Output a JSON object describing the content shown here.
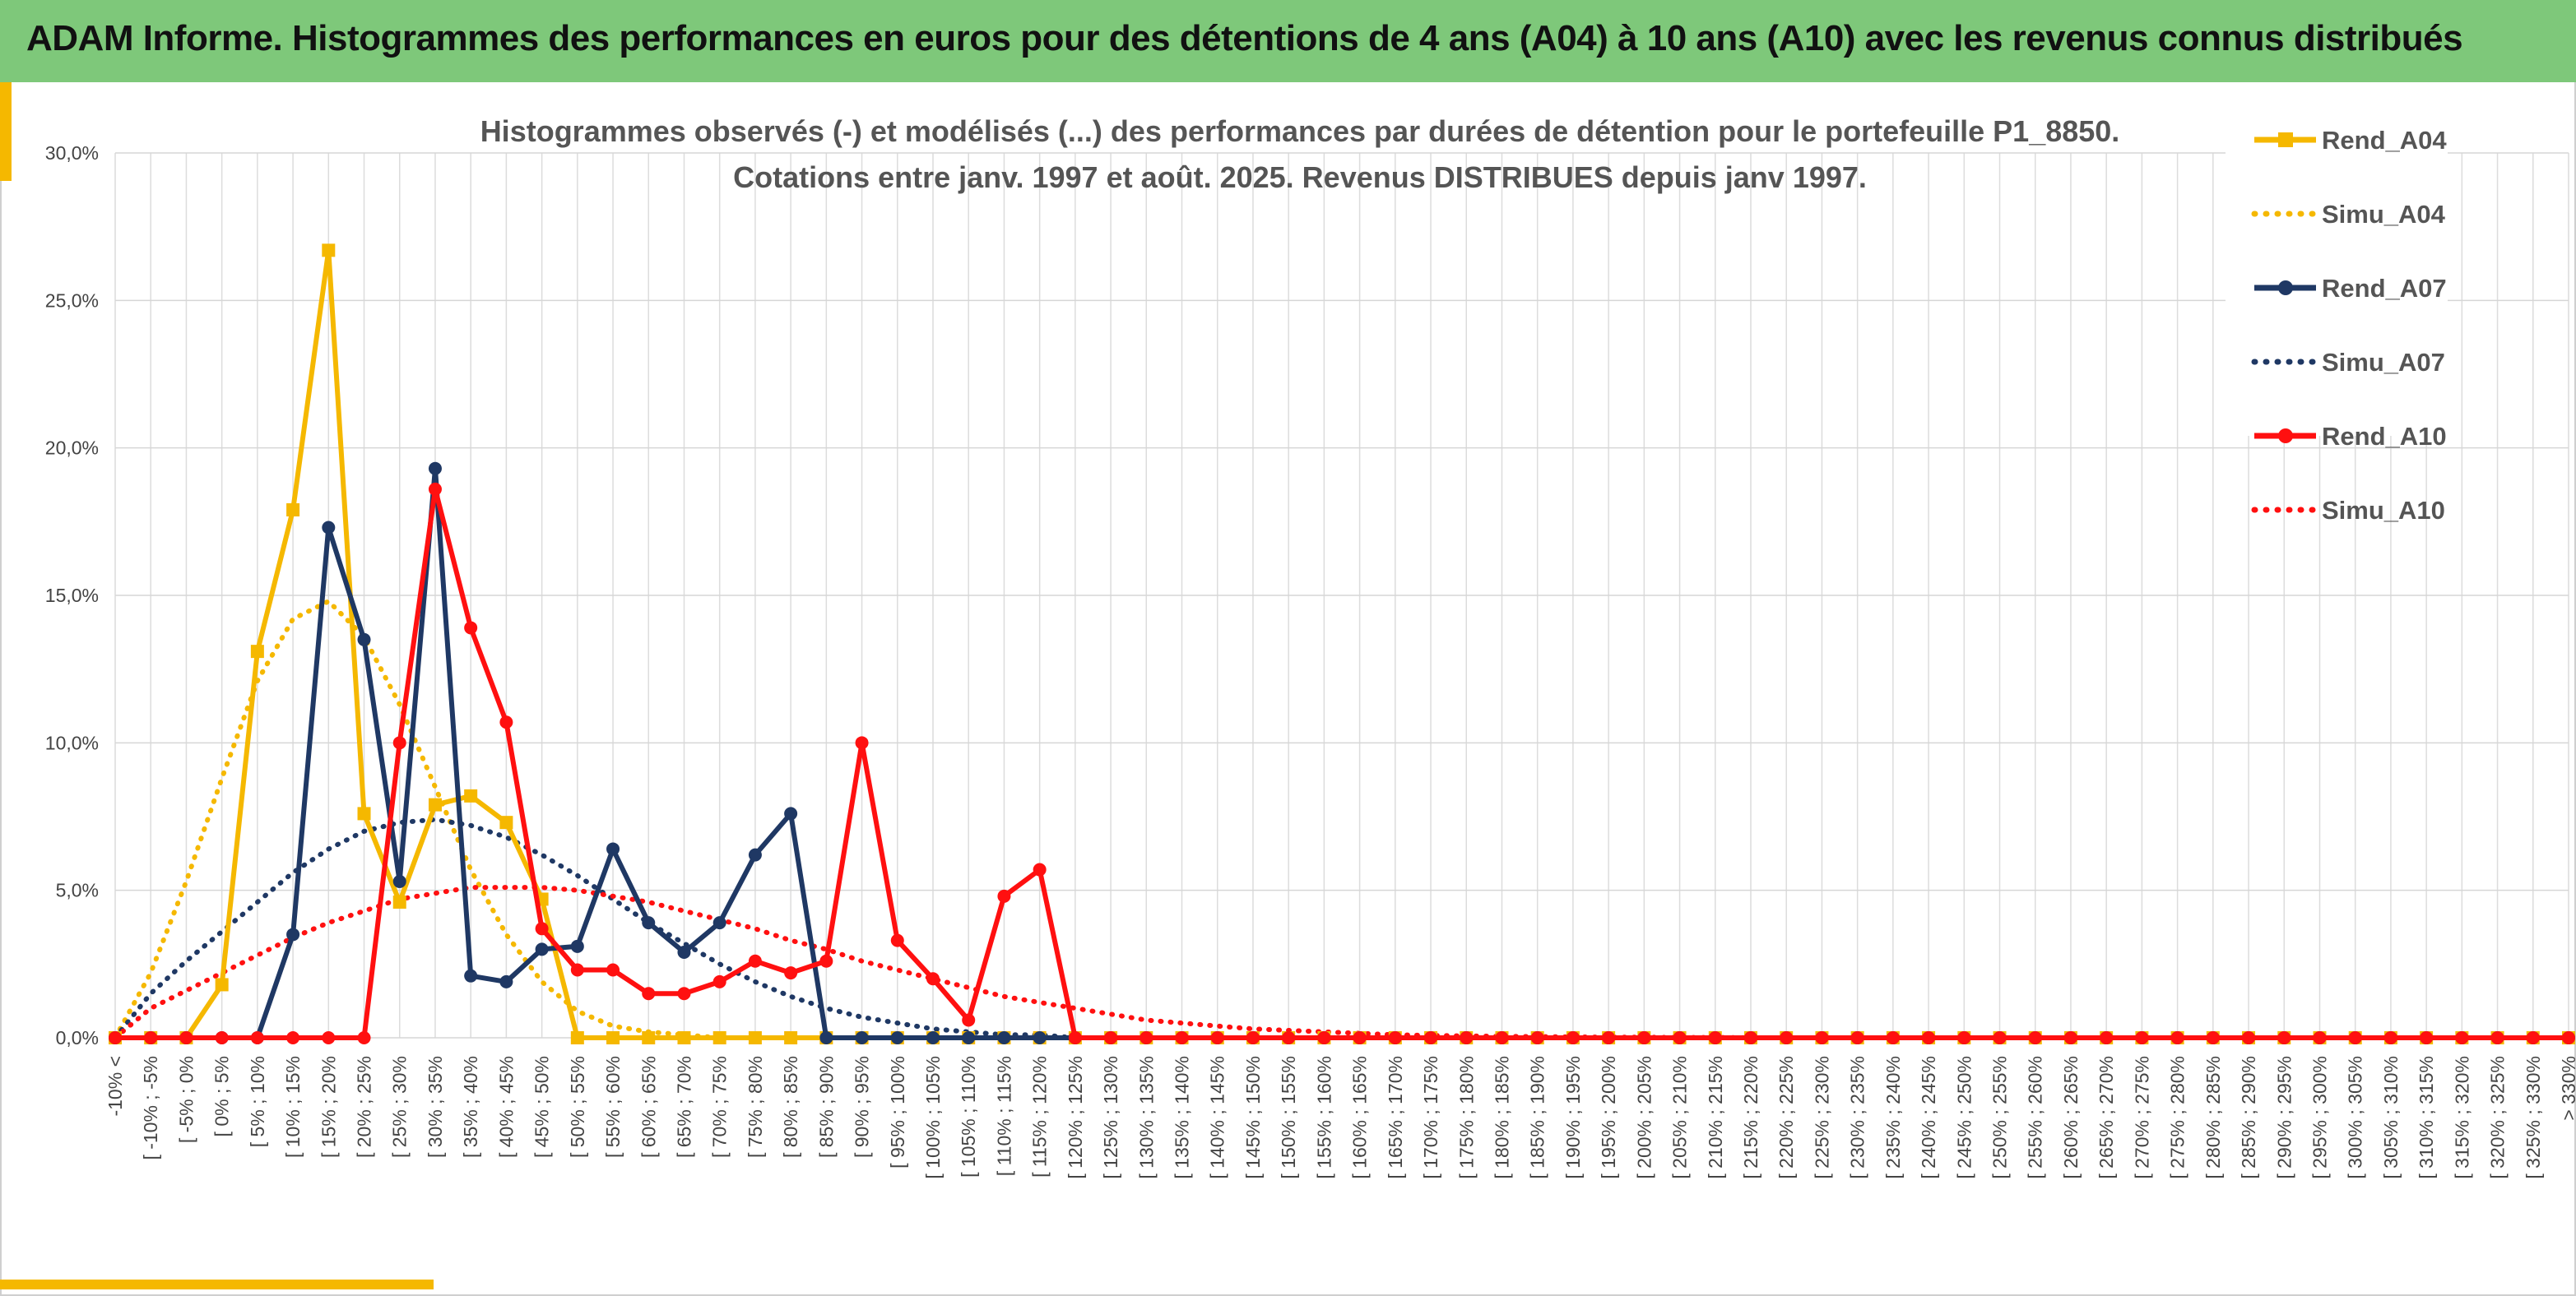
{
  "header": {
    "title": "ADAM Informe. Histogrammes des performances en euros pour des détentions de 4 ans (A04) à 10 ans (A10) avec les revenus connus distribués"
  },
  "colors": {
    "header_bg": "#7ec87a",
    "gold": "#f5b800",
    "navy": "#1f3864",
    "red": "#ff1010",
    "accent": "#f5b800"
  },
  "chart_data": {
    "type": "line",
    "title": [
      "Histogrammes observés (-) et modélisés (...) des performances par durées de détention pour le portefeuille P1_8850.",
      "Cotations entre janv. 1997 et août. 2025. Revenus DISTRIBUES depuis janv 1997."
    ],
    "xlabel": "",
    "ylabel": "",
    "ylim": [
      0,
      30
    ],
    "yticks": [
      "0,0%",
      "5,0%",
      "10,0%",
      "15,0%",
      "20,0%",
      "25,0%",
      "30,0%"
    ],
    "grid": true,
    "legend_position": "right",
    "categories": [
      "-10% <",
      "[ -10% ; -5%",
      "[ -5% ; 0%",
      "[ 0% ; 5%",
      "[ 5% ; 10%",
      "[ 10% ; 15%",
      "[ 15% ; 20%",
      "[ 20% ; 25%",
      "[ 25% ; 30%",
      "[ 30% ; 35%",
      "[ 35% ; 40%",
      "[ 40% ; 45%",
      "[ 45% ; 50%",
      "[ 50% ; 55%",
      "[ 55% ; 60%",
      "[ 60% ; 65%",
      "[ 65% ; 70%",
      "[ 70% ; 75%",
      "[ 75% ; 80%",
      "[ 80% ; 85%",
      "[ 85% ; 90%",
      "[ 90% ; 95%",
      "[ 95% ; 100%",
      "[ 100% ; 105%",
      "[ 105% ; 110%",
      "[ 110% ; 115%",
      "[ 115% ; 120%",
      "[ 120% ; 125%",
      "[ 125% ; 130%",
      "[ 130% ; 135%",
      "[ 135% ; 140%",
      "[ 140% ; 145%",
      "[ 145% ; 150%",
      "[ 150% ; 155%",
      "[ 155% ; 160%",
      "[ 160% ; 165%",
      "[ 165% ; 170%",
      "[ 170% ; 175%",
      "[ 175% ; 180%",
      "[ 180% ; 185%",
      "[ 185% ; 190%",
      "[ 190% ; 195%",
      "[ 195% ; 200%",
      "[ 200% ; 205%",
      "[ 205% ; 210%",
      "[ 210% ; 215%",
      "[ 215% ; 220%",
      "[ 220% ; 225%",
      "[ 225% ; 230%",
      "[ 230% ; 235%",
      "[ 235% ; 240%",
      "[ 240% ; 245%",
      "[ 245% ; 250%",
      "[ 250% ; 255%",
      "[ 255% ; 260%",
      "[ 260% ; 265%",
      "[ 265% ; 270%",
      "[ 270% ; 275%",
      "[ 275% ; 280%",
      "[ 280% ; 285%",
      "[ 285% ; 290%",
      "[ 290% ; 295%",
      "[ 295% ; 300%",
      "[ 300% ; 305%",
      "[ 305% ; 310%",
      "[ 310% ; 315%",
      "[ 315% ; 320%",
      "[ 320% ; 325%",
      "[ 325% ; 330%",
      "> 330%"
    ],
    "series": [
      {
        "name": "Rend_A04",
        "style": "solid",
        "marker": "square",
        "color": "#f5b800",
        "values": [
          0,
          0,
          0,
          1.8,
          13.1,
          17.9,
          26.7,
          7.6,
          4.6,
          7.9,
          8.2,
          7.3,
          4.7,
          0,
          0,
          0,
          0,
          0,
          0,
          0,
          0,
          0,
          0,
          0,
          0,
          0,
          0,
          0,
          0,
          0,
          0,
          0,
          0,
          0,
          0,
          0,
          0,
          0,
          0,
          0,
          0,
          0,
          0,
          0,
          0,
          0,
          0,
          0,
          0,
          0,
          0,
          0,
          0,
          0,
          0,
          0,
          0,
          0,
          0,
          0,
          0,
          0,
          0,
          0,
          0,
          0,
          0,
          0,
          0,
          0
        ]
      },
      {
        "name": "Simu_A04",
        "style": "dotted",
        "marker": "none",
        "color": "#f5b800",
        "values": [
          0,
          2.2,
          5.3,
          8.8,
          12.1,
          14.2,
          14.8,
          13.6,
          11.3,
          8.5,
          5.7,
          3.5,
          1.9,
          0.9,
          0.4,
          0.2,
          0.1,
          0,
          0,
          0,
          0,
          0,
          0,
          0,
          0,
          0,
          0,
          0,
          0,
          0,
          0,
          0,
          0,
          0,
          0,
          0,
          0,
          0,
          0,
          0,
          0,
          0,
          0,
          0,
          0,
          0,
          0,
          0,
          0,
          0,
          0,
          0,
          0,
          0,
          0,
          0,
          0,
          0,
          0,
          0,
          0,
          0,
          0,
          0,
          0,
          0,
          0,
          0,
          0,
          0
        ]
      },
      {
        "name": "Rend_A07",
        "style": "solid",
        "marker": "circle",
        "color": "#1f3864",
        "values": [
          0,
          0,
          0,
          0,
          0,
          3.5,
          17.3,
          13.5,
          5.3,
          19.3,
          2.1,
          1.9,
          3.0,
          3.1,
          6.4,
          3.9,
          2.9,
          3.9,
          6.2,
          7.6,
          0,
          0,
          0,
          0,
          0,
          0,
          0,
          0,
          0,
          0,
          0,
          0,
          0,
          0,
          0,
          0,
          0,
          0,
          0,
          0,
          0,
          0,
          0,
          0,
          0,
          0,
          0,
          0,
          0,
          0,
          0,
          0,
          0,
          0,
          0,
          0,
          0,
          0,
          0,
          0,
          0,
          0,
          0,
          0,
          0,
          0,
          0,
          0,
          0,
          0
        ]
      },
      {
        "name": "Simu_A07",
        "style": "dotted",
        "marker": "none",
        "color": "#1f3864",
        "values": [
          0,
          1.5,
          2.6,
          3.6,
          4.6,
          5.6,
          6.4,
          7.0,
          7.3,
          7.4,
          7.2,
          6.8,
          6.2,
          5.5,
          4.7,
          3.9,
          3.2,
          2.5,
          1.9,
          1.4,
          1.0,
          0.7,
          0.5,
          0.3,
          0.2,
          0.1,
          0.1,
          0,
          0,
          0,
          0,
          0,
          0,
          0,
          0,
          0,
          0,
          0,
          0,
          0,
          0,
          0,
          0,
          0,
          0,
          0,
          0,
          0,
          0,
          0,
          0,
          0,
          0,
          0,
          0,
          0,
          0,
          0,
          0,
          0,
          0,
          0,
          0,
          0,
          0,
          0,
          0,
          0,
          0,
          0
        ]
      },
      {
        "name": "Rend_A10",
        "style": "solid",
        "marker": "circle",
        "color": "#ff1010",
        "values": [
          0,
          0,
          0,
          0,
          0,
          0,
          0,
          0,
          10.0,
          18.6,
          13.9,
          10.7,
          3.7,
          2.3,
          2.3,
          1.5,
          1.5,
          1.9,
          2.6,
          2.2,
          2.6,
          10.0,
          3.3,
          2.0,
          0.6,
          4.8,
          5.7,
          0,
          0,
          0,
          0,
          0,
          0,
          0,
          0,
          0,
          0,
          0,
          0,
          0,
          0,
          0,
          0,
          0,
          0,
          0,
          0,
          0,
          0,
          0,
          0,
          0,
          0,
          0,
          0,
          0,
          0,
          0,
          0,
          0,
          0,
          0,
          0,
          0,
          0,
          0,
          0,
          0,
          0,
          0
        ]
      },
      {
        "name": "Simu_A10",
        "style": "dotted",
        "marker": "none",
        "color": "#ff1010",
        "values": [
          0,
          1.0,
          1.6,
          2.2,
          2.8,
          3.4,
          3.9,
          4.3,
          4.7,
          4.9,
          5.1,
          5.1,
          5.1,
          5.0,
          4.8,
          4.6,
          4.3,
          4.0,
          3.7,
          3.3,
          3.0,
          2.6,
          2.3,
          2.0,
          1.7,
          1.4,
          1.2,
          1.0,
          0.8,
          0.6,
          0.5,
          0.4,
          0.3,
          0.25,
          0.2,
          0.15,
          0.1,
          0.08,
          0.06,
          0.05,
          0.04,
          0.03,
          0.02,
          0.02,
          0.01,
          0.01,
          0,
          0,
          0,
          0,
          0,
          0,
          0,
          0,
          0,
          0,
          0,
          0,
          0,
          0,
          0,
          0,
          0,
          0,
          0,
          0,
          0,
          0,
          0,
          0
        ]
      }
    ]
  }
}
